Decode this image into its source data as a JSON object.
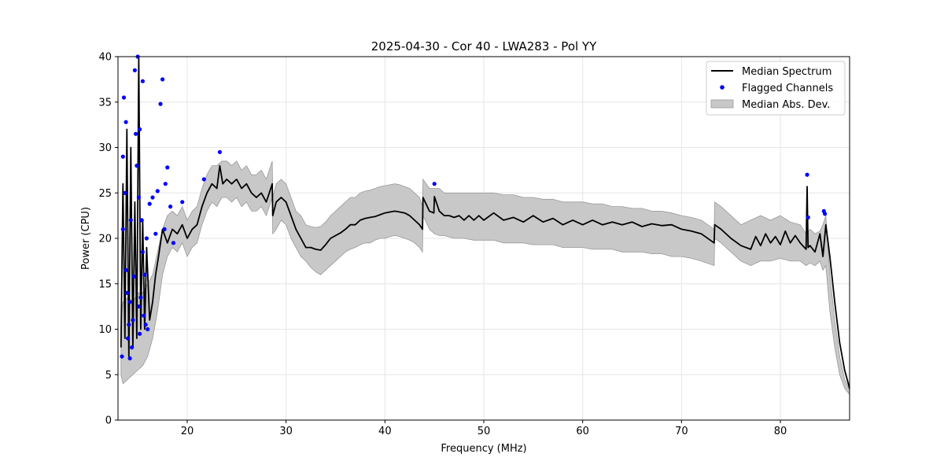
{
  "chart_data": {
    "type": "line",
    "title": "2025-04-30 - Cor 40 - LWA283 - Pol YY",
    "xlabel": "Frequency (MHz)",
    "ylabel": "Power (CPU)",
    "xlim": [
      13.0,
      87.0
    ],
    "ylim": [
      0,
      40
    ],
    "xticks": [
      20,
      30,
      40,
      50,
      60,
      70,
      80
    ],
    "yticks": [
      0,
      5,
      10,
      15,
      20,
      25,
      30,
      35,
      40
    ],
    "xtick_labels": [
      "20",
      "30",
      "40",
      "50",
      "60",
      "70",
      "80"
    ],
    "ytick_labels": [
      "0",
      "5",
      "10",
      "15",
      "20",
      "25",
      "30",
      "35",
      "40"
    ],
    "grid": true,
    "legend_position": "top-right",
    "legend": {
      "median": "Median Spectrum",
      "flagged": "Flagged Channels",
      "mad": "Median Abs. Dev."
    },
    "colors": {
      "median": "#000000",
      "flagged": "#0000ff",
      "mad_fill": "#c8c8c8",
      "mad_edge": "#999999",
      "grid": "#e6e6e6"
    },
    "series": [
      {
        "name": "Median Spectrum",
        "kind": "line",
        "x": [
          13.3,
          13.5,
          13.7,
          13.9,
          14.1,
          14.3,
          14.5,
          14.7,
          14.9,
          15.1,
          15.3,
          15.5,
          15.7,
          15.9,
          16.2,
          16.5,
          16.8,
          17.1,
          17.5,
          18.0,
          18.5,
          19.0,
          19.5,
          20.0,
          20.5,
          21.0,
          21.5,
          22.0,
          22.5,
          23.0,
          23.3,
          23.6,
          24.0,
          24.5,
          25.0,
          25.5,
          26.0,
          26.5,
          27.0,
          27.5,
          28.0,
          28.6,
          28.65,
          29.0,
          29.5,
          30.0,
          30.5,
          31.0,
          31.5,
          32.0,
          32.5,
          33.0,
          33.5,
          34.0,
          34.5,
          35.0,
          35.5,
          36.0,
          36.5,
          37.0,
          37.5,
          38.0,
          38.5,
          39.0,
          39.5,
          40.0,
          40.5,
          41.0,
          41.5,
          42.0,
          42.5,
          43.0,
          43.5,
          43.8,
          43.85,
          44.5,
          44.95,
          45.0,
          45.5,
          46.0,
          46.5,
          47.0,
          47.5,
          48.0,
          48.5,
          49.0,
          49.5,
          50.0,
          51.0,
          52.0,
          53.0,
          54.0,
          55.0,
          56.0,
          57.0,
          58.0,
          59.0,
          60.0,
          61.0,
          62.0,
          63.0,
          64.0,
          65.0,
          66.0,
          67.0,
          68.0,
          69.0,
          70.0,
          71.0,
          72.0,
          73.3,
          73.35,
          74.0,
          75.0,
          76.0,
          77.0,
          77.5,
          78.0,
          78.5,
          79.0,
          79.5,
          80.0,
          80.5,
          81.0,
          81.5,
          82.0,
          82.6,
          82.7,
          82.8,
          83.0,
          83.5,
          84.0,
          84.3,
          84.6,
          85.0,
          85.5,
          86.0,
          86.5,
          87.0
        ],
        "y": [
          8.0,
          26.0,
          9.0,
          32.0,
          7.0,
          30.0,
          8.0,
          24.0,
          9.0,
          40.0,
          10.0,
          22.0,
          10.0,
          19.0,
          11.0,
          13.0,
          16.0,
          18.0,
          21.0,
          19.5,
          21.0,
          20.5,
          21.5,
          20.0,
          21.0,
          21.5,
          23.5,
          25.0,
          26.0,
          25.5,
          28.0,
          26.0,
          26.5,
          26.0,
          26.5,
          25.5,
          26.0,
          25.0,
          24.5,
          25.0,
          24.0,
          26.0,
          22.5,
          24.0,
          24.5,
          24.0,
          22.5,
          21.0,
          20.0,
          19.0,
          19.0,
          18.8,
          18.7,
          19.3,
          20.0,
          20.3,
          20.6,
          21.0,
          21.5,
          21.5,
          22.0,
          22.2,
          22.3,
          22.4,
          22.6,
          22.8,
          22.9,
          23.0,
          22.9,
          22.8,
          22.5,
          22.0,
          21.5,
          21.0,
          24.5,
          23.0,
          22.8,
          24.6,
          23.0,
          22.5,
          22.5,
          22.3,
          22.5,
          22.0,
          22.5,
          22.0,
          22.5,
          22.0,
          22.8,
          22.0,
          22.3,
          21.8,
          22.5,
          21.8,
          22.2,
          21.5,
          22.0,
          21.5,
          22.0,
          21.5,
          21.8,
          21.5,
          21.8,
          21.3,
          21.6,
          21.4,
          21.5,
          21.0,
          20.8,
          20.5,
          19.5,
          21.5,
          21.0,
          20.0,
          19.2,
          18.8,
          20.2,
          19.2,
          20.5,
          19.5,
          20.2,
          19.3,
          20.8,
          19.5,
          20.3,
          19.5,
          18.8,
          25.7,
          19.0,
          19.2,
          18.5,
          20.5,
          18.0,
          21.5,
          18.0,
          13.0,
          8.5,
          5.5,
          3.5
        ]
      },
      {
        "name": "Flagged Channels",
        "kind": "scatter",
        "x": [
          13.4,
          13.5,
          13.5,
          13.6,
          13.7,
          13.8,
          13.8,
          13.9,
          14.0,
          14.1,
          14.2,
          14.2,
          14.3,
          14.4,
          14.5,
          14.6,
          14.7,
          14.8,
          14.9,
          15.0,
          15.1,
          15.1,
          15.2,
          15.2,
          15.3,
          15.4,
          15.5,
          15.5,
          15.6,
          15.7,
          15.8,
          15.9,
          16.0,
          16.2,
          16.5,
          16.8,
          17.0,
          17.3,
          17.5,
          17.7,
          17.8,
          18.0,
          18.3,
          18.6,
          19.5,
          21.7,
          23.3,
          45.0,
          82.7,
          82.8,
          84.4,
          84.5
        ],
        "y": [
          7.0,
          21.0,
          29.0,
          35.5,
          25.0,
          32.8,
          16.5,
          14.0,
          9.0,
          10.5,
          6.8,
          13.0,
          22.0,
          8.0,
          11.0,
          15.8,
          38.5,
          31.5,
          28.0,
          40.0,
          12.5,
          24.5,
          9.5,
          32.0,
          13.5,
          22.0,
          37.3,
          18.5,
          11.5,
          16.0,
          10.5,
          20.0,
          10.0,
          23.8,
          24.5,
          20.5,
          25.2,
          34.8,
          37.5,
          21.0,
          26.0,
          27.8,
          23.5,
          19.5,
          24.0,
          26.5,
          29.5,
          26.0,
          27.0,
          22.3,
          23.0,
          22.7
        ]
      },
      {
        "name": "Median Abs. Dev.",
        "kind": "band",
        "x": [
          13.3,
          13.5,
          14.0,
          14.5,
          15.0,
          15.5,
          16.0,
          16.5,
          17.0,
          17.5,
          18.0,
          18.5,
          19.0,
          19.5,
          20.0,
          20.5,
          21.0,
          21.5,
          22.0,
          22.5,
          23.0,
          23.5,
          24.0,
          24.5,
          25.0,
          25.5,
          26.0,
          26.5,
          27.0,
          27.5,
          28.0,
          28.6,
          28.65,
          29.0,
          29.5,
          30.0,
          30.5,
          31.0,
          31.5,
          32.0,
          32.5,
          33.0,
          33.5,
          34.0,
          34.5,
          35.0,
          35.5,
          36.0,
          36.5,
          37.0,
          37.5,
          38.0,
          38.5,
          39.0,
          39.5,
          40.0,
          40.5,
          41.0,
          41.5,
          42.0,
          42.5,
          43.0,
          43.5,
          43.8,
          43.85,
          44.5,
          45.0,
          45.5,
          46.0,
          47.0,
          48.0,
          49.0,
          50.0,
          51.0,
          52.0,
          53.0,
          54.0,
          55.0,
          56.0,
          57.0,
          58.0,
          59.0,
          60.0,
          61.0,
          62.0,
          63.0,
          64.0,
          65.0,
          66.0,
          67.0,
          68.0,
          69.0,
          70.0,
          71.0,
          72.0,
          73.3,
          73.35,
          74.0,
          75.0,
          76.0,
          77.0,
          78.0,
          79.0,
          80.0,
          81.0,
          82.0,
          82.6,
          83.0,
          83.5,
          84.0,
          84.3,
          84.6,
          85.0,
          85.5,
          86.0,
          86.5,
          87.0
        ],
        "upper": [
          11.0,
          13.0,
          13.5,
          13.0,
          14.0,
          14.0,
          15.0,
          16.0,
          18.5,
          21.0,
          22.5,
          23.0,
          22.5,
          23.5,
          22.0,
          23.0,
          23.5,
          25.5,
          27.0,
          28.0,
          28.0,
          28.5,
          28.5,
          28.0,
          28.5,
          27.5,
          28.0,
          27.0,
          27.0,
          27.5,
          26.5,
          28.5,
          24.5,
          26.0,
          26.5,
          26.0,
          24.5,
          23.0,
          22.5,
          21.5,
          21.3,
          21.2,
          21.3,
          21.8,
          22.5,
          23.0,
          23.5,
          24.0,
          24.5,
          24.5,
          25.0,
          25.2,
          25.3,
          25.5,
          25.7,
          25.8,
          25.9,
          26.0,
          25.9,
          25.7,
          25.5,
          25.0,
          24.5,
          23.5,
          26.5,
          25.5,
          25.5,
          25.5,
          25.0,
          25.0,
          25.0,
          25.0,
          25.0,
          25.0,
          24.8,
          24.8,
          24.5,
          24.5,
          24.3,
          24.3,
          24.0,
          24.0,
          24.0,
          23.8,
          23.8,
          23.5,
          23.5,
          23.3,
          23.3,
          23.0,
          23.0,
          22.8,
          22.5,
          22.3,
          22.0,
          21.0,
          24.0,
          23.5,
          22.5,
          21.5,
          22.0,
          22.5,
          22.0,
          22.5,
          21.8,
          21.5,
          20.5,
          21.0,
          20.5,
          20.8,
          21.5,
          22.5,
          16.0,
          11.0,
          7.0,
          4.5,
          3.3
        ],
        "lower": [
          5.0,
          4.0,
          4.5,
          5.0,
          5.5,
          6.0,
          7.0,
          9.0,
          12.0,
          16.0,
          18.0,
          19.0,
          18.5,
          19.5,
          18.0,
          19.0,
          19.5,
          21.5,
          23.0,
          24.0,
          23.5,
          24.5,
          24.5,
          24.0,
          24.5,
          23.5,
          24.0,
          23.0,
          23.0,
          23.5,
          22.5,
          24.5,
          20.5,
          21.0,
          22.0,
          21.5,
          20.0,
          19.0,
          18.0,
          17.5,
          16.8,
          16.3,
          16.0,
          16.5,
          17.0,
          17.5,
          18.0,
          18.5,
          18.8,
          19.0,
          19.3,
          19.5,
          19.5,
          19.8,
          20.0,
          20.0,
          20.2,
          20.3,
          20.2,
          20.0,
          19.8,
          19.5,
          19.0,
          18.5,
          22.5,
          21.0,
          20.5,
          20.3,
          20.3,
          20.0,
          20.0,
          19.8,
          19.8,
          19.8,
          19.5,
          19.5,
          19.5,
          19.3,
          19.3,
          19.3,
          19.0,
          19.0,
          19.0,
          18.8,
          18.8,
          18.8,
          18.5,
          18.5,
          18.5,
          18.3,
          18.3,
          18.0,
          18.0,
          17.8,
          17.5,
          17.0,
          20.0,
          19.5,
          18.5,
          17.5,
          17.0,
          17.5,
          17.5,
          17.8,
          17.5,
          17.5,
          17.0,
          17.3,
          17.0,
          17.5,
          16.5,
          17.0,
          12.0,
          8.0,
          5.0,
          3.5,
          2.8
        ]
      }
    ]
  }
}
